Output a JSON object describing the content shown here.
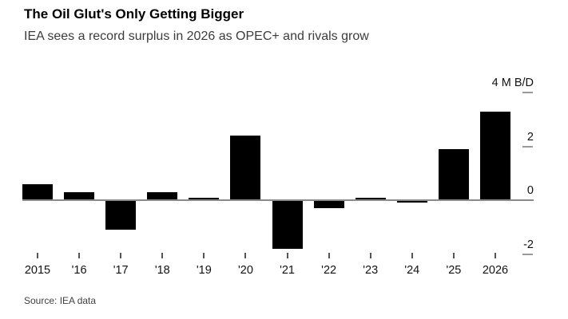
{
  "header": {
    "title": "The Oil Glut's Only Getting Bigger",
    "subtitle": "IEA sees a record surplus in 2026 as OPEC+ and rivals grow"
  },
  "source": "Source: IEA data",
  "chart_data": {
    "type": "bar",
    "title": "The Oil Glut's Only Getting Bigger",
    "subtitle": "IEA sees a record surplus in 2026 as OPEC+ and rivals grow",
    "unit_label": "4 M B/D",
    "categories": [
      "2015",
      "'16",
      "'17",
      "'18",
      "'19",
      "'20",
      "'21",
      "'22",
      "'23",
      "'24",
      "'25",
      "2026"
    ],
    "values": [
      0.6,
      0.3,
      -1.1,
      0.3,
      0.1,
      2.4,
      -1.8,
      -0.3,
      0.1,
      -0.1,
      1.9,
      3.3
    ],
    "y_axis": [
      {
        "value": 4,
        "label": "4 M B/D"
      },
      {
        "value": 2,
        "label": "2"
      },
      {
        "value": 0,
        "label": "0"
      },
      {
        "value": -2,
        "label": "-2"
      }
    ],
    "xlabel": "",
    "ylabel": "M B/D",
    "ylim": [
      -2.6,
      4.3
    ],
    "grid": false,
    "legend": "none",
    "bar_color": "#000000",
    "axis_color": "#8a8a8a",
    "tick_color": "#999999",
    "source": "Source: IEA data"
  }
}
